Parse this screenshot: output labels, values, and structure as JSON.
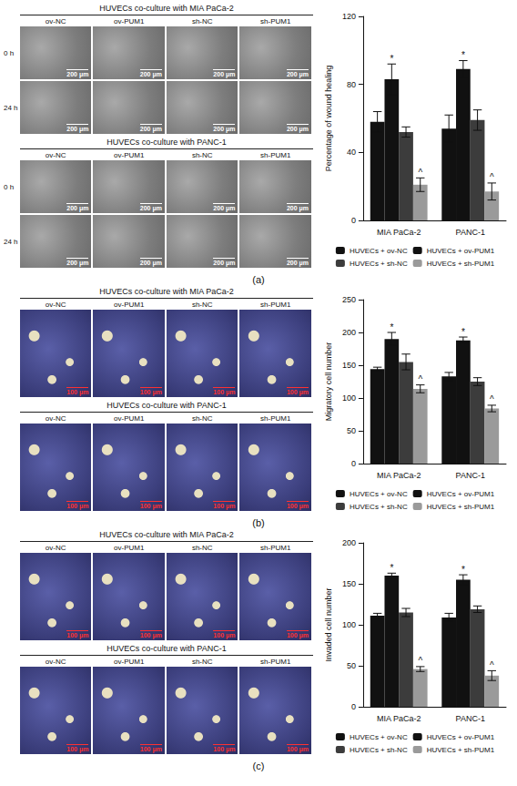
{
  "chart_data": [
    {
      "type": "bar",
      "ylabel": "Percentage of wound healing",
      "categories": [
        "MIA PaCa-2",
        "PANC-1"
      ],
      "series": [
        {
          "name": "HUVECs + ov-NC",
          "color": "#111111",
          "values": [
            58,
            54
          ],
          "errors": [
            6,
            8
          ]
        },
        {
          "name": "HUVECs + ov-PUM1",
          "color": "#111111",
          "values": [
            83,
            89
          ],
          "errors": [
            9,
            5
          ],
          "marks": [
            "*",
            "*"
          ]
        },
        {
          "name": "HUVECs + sh-NC",
          "color": "#3c3c3c",
          "values": [
            52,
            59
          ],
          "errors": [
            3,
            6
          ]
        },
        {
          "name": "HUVECs + sh-PUM1",
          "color": "#9a9a9a",
          "values": [
            21,
            17
          ],
          "errors": [
            4,
            5
          ],
          "marks": [
            "^",
            "^"
          ]
        }
      ],
      "ylim": [
        0,
        120
      ],
      "yticks": [
        0,
        40,
        80,
        120
      ],
      "grid": false,
      "legend": "bottom"
    },
    {
      "type": "bar",
      "ylabel": "Migratory cell number",
      "categories": [
        "MIA PaCa-2",
        "PANC-1"
      ],
      "series": [
        {
          "name": "HUVECs + ov-NC",
          "color": "#111111",
          "values": [
            144,
            133
          ],
          "errors": [
            3,
            6
          ]
        },
        {
          "name": "HUVECs + ov-PUM1",
          "color": "#111111",
          "values": [
            190,
            188
          ],
          "errors": [
            10,
            5
          ],
          "marks": [
            "*",
            "*"
          ]
        },
        {
          "name": "HUVECs + sh-NC",
          "color": "#3c3c3c",
          "values": [
            155,
            125
          ],
          "errors": [
            12,
            6
          ]
        },
        {
          "name": "HUVECs + sh-PUM1",
          "color": "#9a9a9a",
          "values": [
            114,
            84
          ],
          "errors": [
            6,
            5
          ],
          "marks": [
            "^",
            "^"
          ]
        }
      ],
      "ylim": [
        0,
        250
      ],
      "yticks": [
        0,
        50,
        100,
        150,
        200,
        250
      ],
      "grid": false,
      "legend": "bottom"
    },
    {
      "type": "bar",
      "ylabel": "Invaded cell number",
      "categories": [
        "MIA PaCa-2",
        "PANC-1"
      ],
      "series": [
        {
          "name": "HUVECs + ov-NC",
          "color": "#111111",
          "values": [
            111,
            109
          ],
          "errors": [
            3,
            5
          ]
        },
        {
          "name": "HUVECs + ov-PUM1",
          "color": "#111111",
          "values": [
            160,
            155
          ],
          "errors": [
            3,
            6
          ],
          "marks": [
            "*",
            "*"
          ]
        },
        {
          "name": "HUVECs + sh-NC",
          "color": "#3c3c3c",
          "values": [
            115,
            119
          ],
          "errors": [
            5,
            4
          ]
        },
        {
          "name": "HUVECs + sh-PUM1",
          "color": "#9a9a9a",
          "values": [
            46,
            38
          ],
          "errors": [
            3,
            6
          ],
          "marks": [
            "^",
            "^"
          ]
        }
      ],
      "ylim": [
        0,
        200
      ],
      "yticks": [
        0,
        50,
        100,
        150,
        200
      ],
      "grid": false,
      "legend": "bottom"
    }
  ],
  "figure": {
    "panels": [
      {
        "letter": "(a)",
        "image_groups": [
          {
            "title": "HUVECs co-culture with MIA PaCa-2",
            "columns": [
              "ov-NC",
              "ov-PUM1",
              "sh-NC",
              "sh-PUM1"
            ],
            "rows": [
              "0 h",
              "24 h"
            ],
            "scale_bar": "200 μm"
          },
          {
            "title": "HUVECs co-culture with PANC-1",
            "columns": [
              "ov-NC",
              "ov-PUM1",
              "sh-NC",
              "sh-PUM1"
            ],
            "rows": [
              "0 h",
              "24 h"
            ],
            "scale_bar": "200 μm"
          }
        ]
      },
      {
        "letter": "(b)",
        "image_groups": [
          {
            "title": "HUVECs co-culture with MIA PaCa-2",
            "columns": [
              "ov-NC",
              "ov-PUM1",
              "sh-NC",
              "sh-PUM1"
            ],
            "scale_bar": "100 μm"
          },
          {
            "title": "HUVECs co-culture with PANC-1",
            "columns": [
              "ov-NC",
              "ov-PUM1",
              "sh-NC",
              "sh-PUM1"
            ],
            "scale_bar": "100 μm"
          }
        ]
      },
      {
        "letter": "(c)",
        "image_groups": [
          {
            "title": "HUVECs co-culture with MIA PaCa-2",
            "columns": [
              "ov-NC",
              "ov-PUM1",
              "sh-NC",
              "sh-PUM1"
            ],
            "scale_bar": "100 μm"
          },
          {
            "title": "HUVECs co-culture with PANC-1",
            "columns": [
              "ov-NC",
              "ov-PUM1",
              "sh-NC",
              "sh-PUM1"
            ],
            "scale_bar": "100 μm"
          }
        ]
      }
    ]
  }
}
